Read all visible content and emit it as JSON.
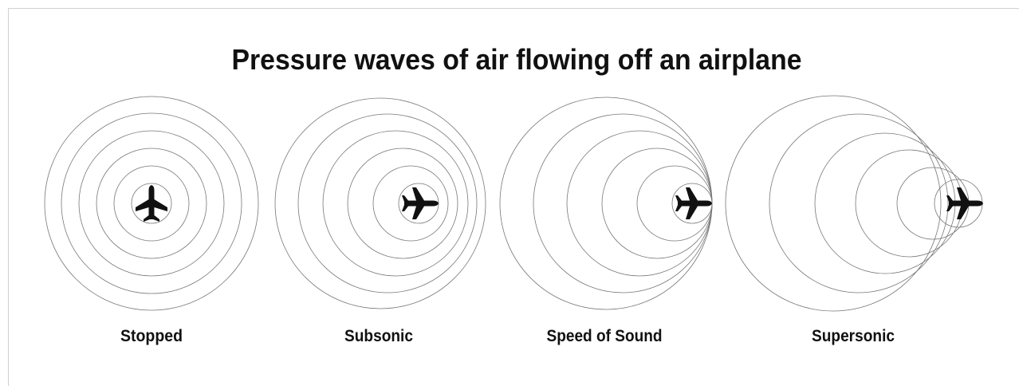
{
  "title": "Pressure waves of air flowing off an airplane",
  "panels": [
    {
      "label": "Stopped"
    },
    {
      "label": "Subsonic"
    },
    {
      "label": "Speed of Sound"
    },
    {
      "label": "Supersonic"
    }
  ]
}
